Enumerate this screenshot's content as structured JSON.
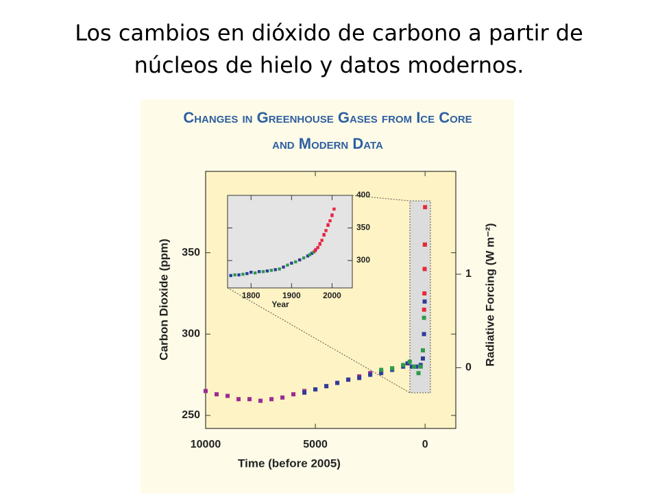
{
  "slide_title": [
    "Los cambios en dióxido de carbono a partir de",
    "núcleos de hielo y datos modernos."
  ],
  "chart_data": [
    {
      "type": "scatter",
      "title": [
        "Changes in Greenhouse Gases from Ice Core",
        "and Modern Data"
      ],
      "xlabel": "Time (before 2005)",
      "ylabel": "Carbon Dioxide (ppm)",
      "y2label": "Radiative Forcing (W m⁻²)",
      "xlim": [
        10000,
        -1400
      ],
      "xticks": [
        10000,
        5000,
        0
      ],
      "ylim": [
        242,
        400
      ],
      "yticks": [
        250,
        300,
        350
      ],
      "y2lim": [
        -0.65,
        2.1
      ],
      "y2ticks": [
        0,
        1
      ],
      "series": [
        {
          "color": "#9b2a93",
          "x": [
            10000,
            9500,
            9000,
            8500,
            8000,
            7500,
            7000,
            6500,
            6000,
            5500,
            5000,
            4500,
            4000,
            3500,
            3000,
            2500,
            2000
          ],
          "values": [
            265,
            263,
            262,
            260,
            260,
            259,
            260,
            261,
            263,
            265,
            266,
            268,
            270,
            272,
            274,
            276,
            277
          ]
        },
        {
          "color": "#2e3c99",
          "x": [
            5500,
            5000,
            4500,
            4000,
            3500,
            3000,
            2500,
            2000,
            1500,
            1000,
            800,
            600,
            400,
            200,
            100,
            50,
            20
          ],
          "values": [
            264,
            266,
            268,
            270,
            272,
            273,
            275,
            276,
            278,
            280,
            282,
            280,
            280,
            281,
            285,
            300,
            320
          ]
        },
        {
          "color": "#2e9a4c",
          "x": [
            2000,
            1500,
            1000,
            700,
            500,
            300,
            200,
            100,
            50,
            20,
            10
          ],
          "values": [
            278,
            279,
            281,
            283,
            280,
            276,
            280,
            290,
            310,
            340,
            355
          ]
        },
        {
          "color": "#e8283a",
          "x": [
            45,
            30,
            20,
            10,
            0
          ],
          "values": [
            315,
            325,
            340,
            355,
            378
          ]
        }
      ]
    },
    {
      "type": "scatter",
      "xlabel": "Year",
      "xlim": [
        1742,
        2050
      ],
      "xticks": [
        1800,
        1900,
        2000
      ],
      "ylim": [
        258,
        400
      ],
      "yticks": [
        300,
        350,
        400
      ],
      "series": [
        {
          "color": "#2e3c99",
          "x": [
            1750,
            1770,
            1790,
            1800,
            1820,
            1840,
            1860,
            1880,
            1900,
            1920,
            1940,
            1950
          ],
          "values": [
            277,
            278,
            280,
            282,
            283,
            284,
            286,
            290,
            296,
            301,
            307,
            311
          ]
        },
        {
          "color": "#2e9a4c",
          "x": [
            1760,
            1780,
            1810,
            1830,
            1850,
            1870,
            1890,
            1910,
            1930,
            1945,
            1955
          ],
          "values": [
            278,
            279,
            281,
            283,
            285,
            287,
            293,
            298,
            304,
            309,
            313
          ]
        },
        {
          "color": "#d62a8c",
          "x": [
            1960,
            1970,
            1980,
            1990,
            2000
          ],
          "values": [
            317,
            326,
            340,
            355,
            370
          ]
        },
        {
          "color": "#e8283a",
          "x": [
            1958,
            1965,
            1970,
            1975,
            1980,
            1985,
            1990,
            1995,
            2000,
            2005
          ],
          "values": [
            315,
            320,
            325,
            331,
            339,
            346,
            354,
            361,
            369,
            379
          ]
        }
      ]
    }
  ]
}
